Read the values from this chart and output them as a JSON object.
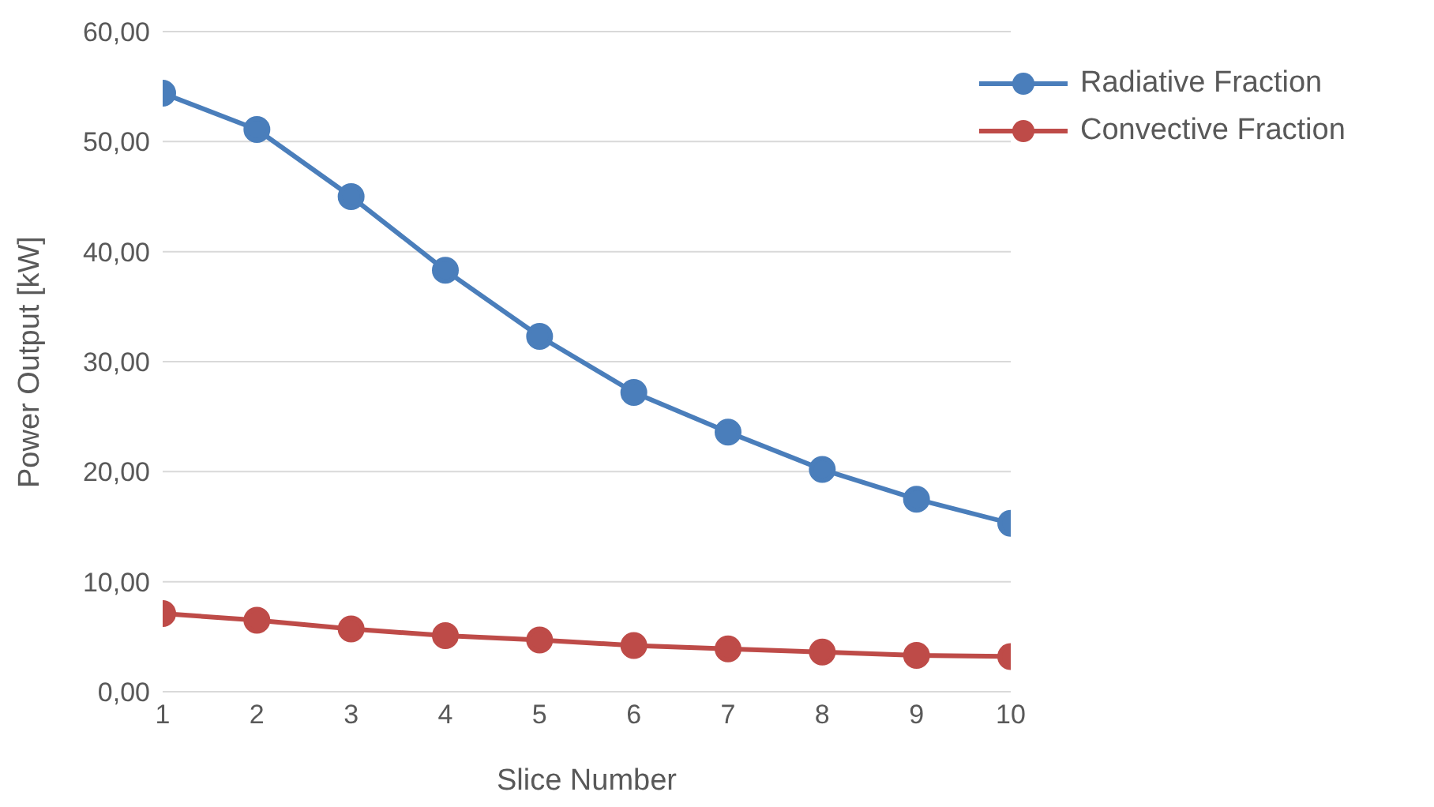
{
  "chart_data": {
    "type": "line",
    "xlabel": "Slice Number",
    "ylabel": "Power Output [kW]",
    "x": [
      1,
      2,
      3,
      4,
      5,
      6,
      7,
      8,
      9,
      10
    ],
    "series": [
      {
        "name": "Radiative Fraction",
        "color": "#4a7ebb",
        "values": [
          54.4,
          51.1,
          45.0,
          38.3,
          32.3,
          27.2,
          23.6,
          20.2,
          17.5,
          15.3
        ]
      },
      {
        "name": "Convective Fraction",
        "color": "#be4b48",
        "values": [
          7.1,
          6.5,
          5.7,
          5.1,
          4.7,
          4.2,
          3.9,
          3.6,
          3.3,
          3.2
        ]
      }
    ],
    "xlim": [
      1,
      10
    ],
    "xticks": [
      1,
      2,
      3,
      4,
      5,
      6,
      7,
      8,
      9,
      10
    ],
    "ylim": [
      0,
      60
    ],
    "yticks": [
      {
        "value": 0,
        "label": "0,00"
      },
      {
        "value": 10,
        "label": "10,00"
      },
      {
        "value": 20,
        "label": "20,00"
      },
      {
        "value": 30,
        "label": "30,00"
      },
      {
        "value": 40,
        "label": "40,00"
      },
      {
        "value": 50,
        "label": "50,00"
      },
      {
        "value": 60,
        "label": "60,00"
      }
    ],
    "grid": "y",
    "legend": "top right",
    "marker": "circle",
    "line_style": "solid"
  }
}
